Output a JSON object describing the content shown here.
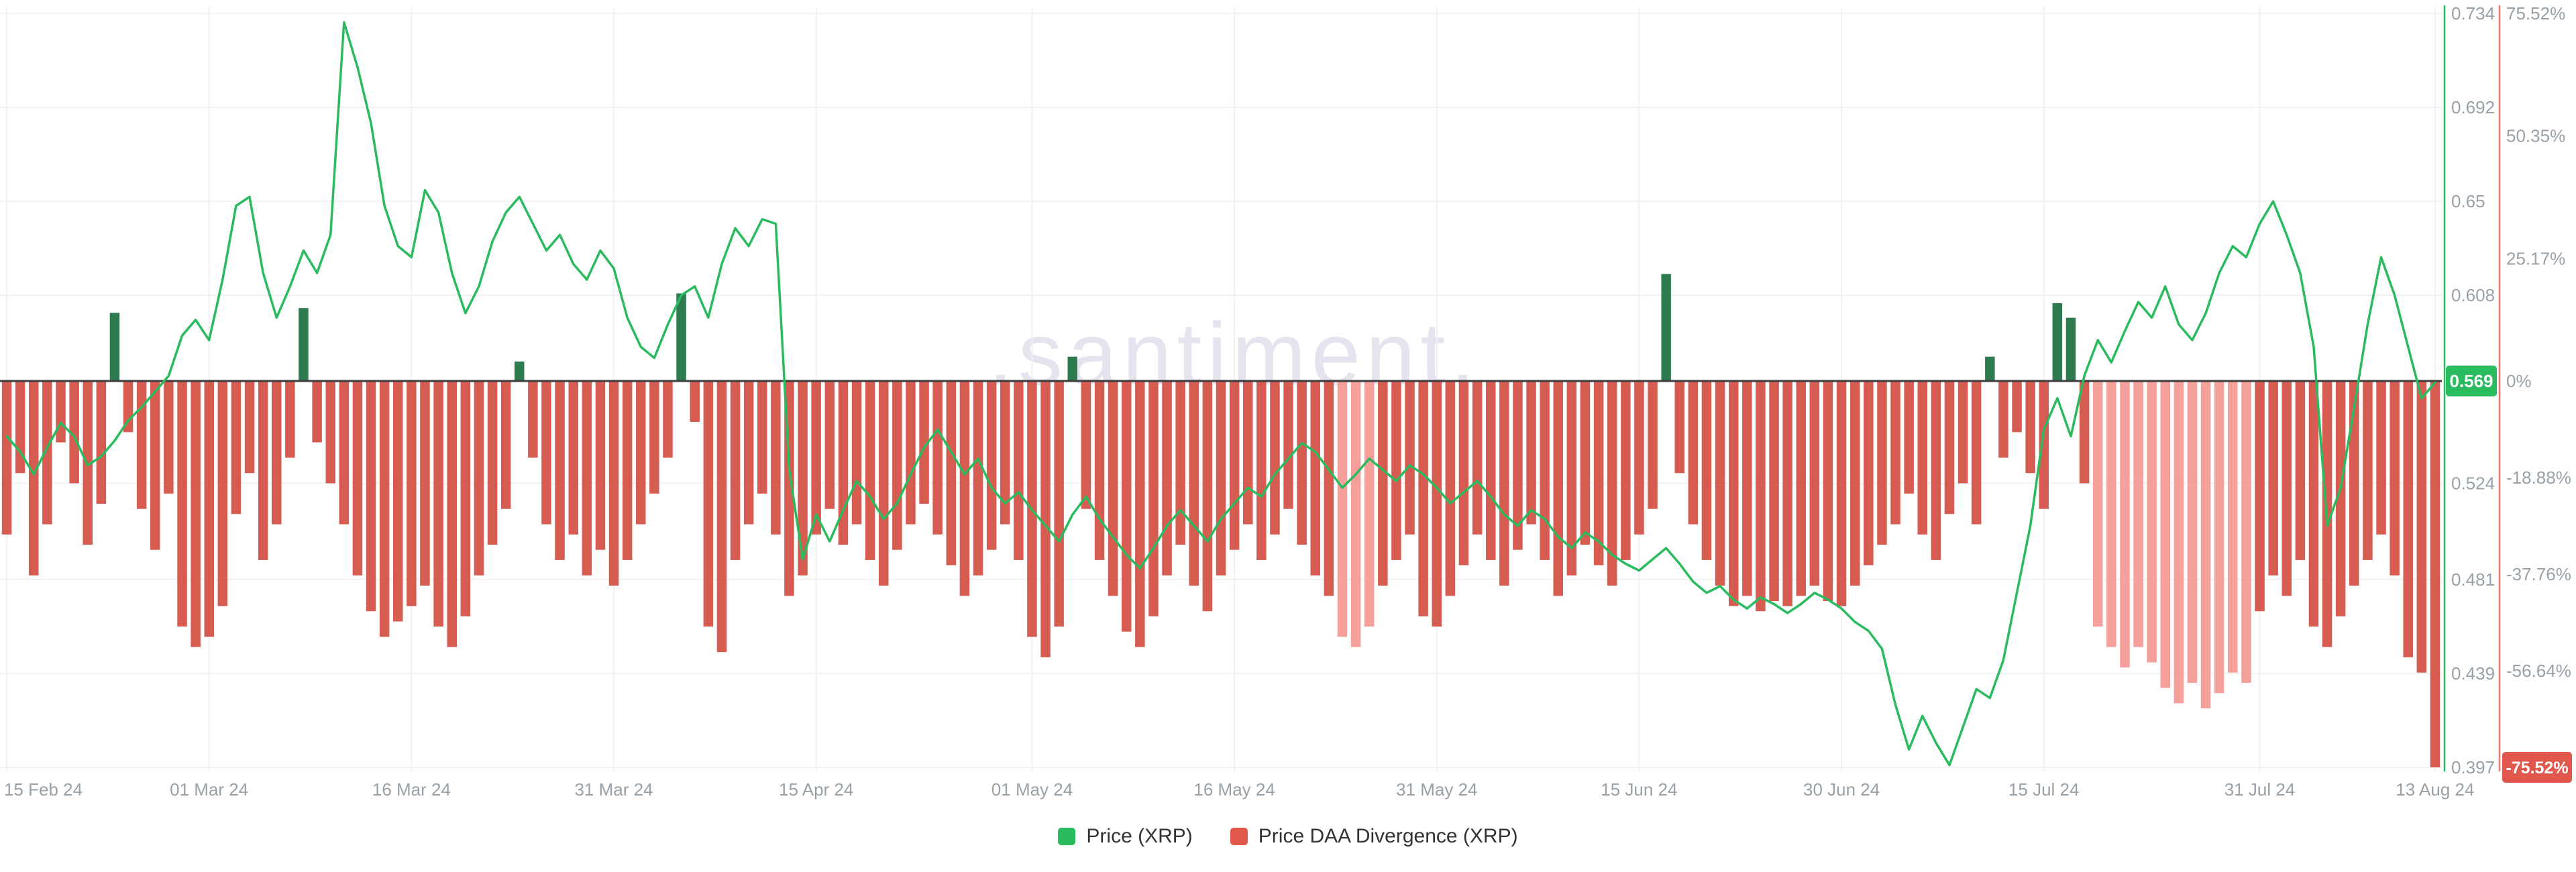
{
  "watermark": ".santiment.",
  "legend": [
    {
      "label": "Price (XRP)",
      "color": "#2abb5e"
    },
    {
      "label": "Price DAA Divergence (XRP)",
      "color": "#e2574c"
    }
  ],
  "chart_data": {
    "type": "mixed",
    "title": "",
    "x_axis": {
      "start": "15 Feb 24",
      "end": "13 Aug 24",
      "points": 181,
      "tick_labels": [
        "15 Feb 24",
        "01 Mar 24",
        "16 Mar 24",
        "31 Mar 24",
        "15 Apr 24",
        "01 May 24",
        "16 May 24",
        "31 May 24",
        "15 Jun 24",
        "30 Jun 24",
        "15 Jul 24",
        "31 Jul 24",
        "13 Aug 24"
      ],
      "tick_indices": [
        0,
        15,
        30,
        45,
        60,
        76,
        91,
        106,
        121,
        136,
        151,
        167,
        180
      ]
    },
    "price_axis": {
      "side": "right-inner",
      "color": "#2abb5e",
      "min": 0.397,
      "max": 0.734,
      "ticks": [
        0.734,
        0.692,
        0.65,
        0.608,
        0.524,
        0.481,
        0.439,
        0.397
      ],
      "current_badge": {
        "label": "0.569",
        "value": 0.569,
        "color": "#2abb5e"
      }
    },
    "percent_axis": {
      "side": "right-outer",
      "color": "#f2766b",
      "min": -75.52,
      "max": 75.52,
      "ticks": [
        {
          "label": "75.52%",
          "value": 75.52
        },
        {
          "label": "50.35%",
          "value": 50.35
        },
        {
          "label": "25.17%",
          "value": 25.17
        },
        {
          "label": "0%",
          "value": 0
        },
        {
          "label": "-18.88%",
          "value": -18.88
        },
        {
          "label": "-37.76%",
          "value": -37.76
        },
        {
          "label": "-56.64%",
          "value": -56.64
        }
      ],
      "bottom_badge": {
        "label": "-75.52%",
        "value": -75.52,
        "color": "#e2574c"
      }
    },
    "zero_line_color": "#3d3d3d",
    "grid_color": "#f1f1f4",
    "tick_text_color": "#99a1a8",
    "series": [
      {
        "name": "Price (XRP)",
        "type": "line",
        "axis": "price",
        "color": "#2abb5e",
        "values": [
          0.545,
          0.538,
          0.528,
          0.54,
          0.551,
          0.545,
          0.532,
          0.536,
          0.543,
          0.552,
          0.558,
          0.565,
          0.572,
          0.59,
          0.597,
          0.588,
          0.615,
          0.648,
          0.652,
          0.618,
          0.598,
          0.612,
          0.628,
          0.618,
          0.635,
          0.73,
          0.71,
          0.685,
          0.648,
          0.63,
          0.625,
          0.655,
          0.645,
          0.618,
          0.6,
          0.612,
          0.632,
          0.645,
          0.652,
          0.64,
          0.628,
          0.635,
          0.622,
          0.615,
          0.628,
          0.62,
          0.598,
          0.585,
          0.58,
          0.595,
          0.608,
          0.612,
          0.598,
          0.622,
          0.638,
          0.63,
          0.642,
          0.64,
          0.53,
          0.49,
          0.51,
          0.498,
          0.512,
          0.525,
          0.518,
          0.508,
          0.515,
          0.528,
          0.54,
          0.548,
          0.538,
          0.528,
          0.535,
          0.522,
          0.515,
          0.52,
          0.512,
          0.505,
          0.498,
          0.51,
          0.518,
          0.508,
          0.5,
          0.492,
          0.486,
          0.495,
          0.505,
          0.512,
          0.505,
          0.498,
          0.508,
          0.515,
          0.522,
          0.518,
          0.528,
          0.535,
          0.542,
          0.538,
          0.53,
          0.522,
          0.528,
          0.535,
          0.53,
          0.525,
          0.532,
          0.528,
          0.522,
          0.515,
          0.52,
          0.525,
          0.518,
          0.51,
          0.505,
          0.512,
          0.508,
          0.5,
          0.495,
          0.502,
          0.498,
          0.492,
          0.488,
          0.485,
          0.49,
          0.495,
          0.488,
          0.48,
          0.475,
          0.478,
          0.472,
          0.468,
          0.473,
          0.47,
          0.466,
          0.47,
          0.475,
          0.472,
          0.468,
          0.462,
          0.458,
          0.45,
          0.425,
          0.405,
          0.42,
          0.408,
          0.398,
          0.415,
          0.432,
          0.428,
          0.445,
          0.475,
          0.505,
          0.548,
          0.562,
          0.545,
          0.572,
          0.588,
          0.578,
          0.592,
          0.605,
          0.598,
          0.612,
          0.595,
          0.588,
          0.6,
          0.618,
          0.63,
          0.625,
          0.64,
          0.65,
          0.635,
          0.618,
          0.585,
          0.505,
          0.522,
          0.558,
          0.595,
          0.625,
          0.608,
          0.585,
          0.562,
          0.569
        ]
      },
      {
        "name": "Price DAA Divergence (XRP)",
        "type": "bar",
        "axis": "percent",
        "color_negative": "#d65c52",
        "color_negative_light": "#f5a09a",
        "color_positive": "#2e7b4f",
        "light_indices": [
          99,
          100,
          101,
          155,
          156,
          157,
          158,
          159,
          160,
          161,
          162,
          163,
          164,
          165,
          166
        ],
        "values": [
          -30,
          -18,
          -38,
          -28,
          -12,
          -20,
          -32,
          -24,
          14,
          -10,
          -25,
          -33,
          -22,
          -48,
          -52,
          -50,
          -44,
          -26,
          -18,
          -35,
          -28,
          -15,
          15,
          -12,
          -20,
          -28,
          -38,
          -45,
          -50,
          -47,
          -44,
          -40,
          -48,
          -52,
          -46,
          -38,
          -32,
          -25,
          4,
          -15,
          -28,
          -35,
          -30,
          -38,
          -33,
          -40,
          -35,
          -28,
          -22,
          -15,
          18,
          -8,
          -48,
          -53,
          -35,
          -28,
          -22,
          -30,
          -42,
          -38,
          -30,
          -25,
          -32,
          -28,
          -35,
          -40,
          -33,
          -28,
          -24,
          -30,
          -36,
          -42,
          -38,
          -33,
          -28,
          -35,
          -50,
          -54,
          -48,
          5,
          -25,
          -35,
          -42,
          -49,
          -52,
          -46,
          -38,
          -32,
          -40,
          -45,
          -38,
          -33,
          -28,
          -35,
          -30,
          -25,
          -32,
          -38,
          -42,
          -50,
          -52,
          -48,
          -40,
          -35,
          -30,
          -46,
          -48,
          -42,
          -36,
          -30,
          -35,
          -40,
          -33,
          -28,
          -35,
          -42,
          -38,
          -32,
          -36,
          -40,
          -35,
          -30,
          -25,
          22,
          -18,
          -28,
          -35,
          -40,
          -44,
          -42,
          -45,
          -43,
          -44,
          -42,
          -40,
          -43,
          -44,
          -40,
          -36,
          -32,
          -28,
          -22,
          -30,
          -35,
          -26,
          -20,
          -28,
          5,
          -15,
          -10,
          -18,
          -25,
          16,
          13,
          -20,
          -48,
          -52,
          -56,
          -52,
          -55,
          -60,
          -63,
          -59,
          -64,
          -61,
          -57,
          -59,
          -45,
          -38,
          -42,
          -35,
          -48,
          -52,
          -46,
          -40,
          -35,
          -30,
          -38,
          -54,
          -57,
          -75.52
        ]
      }
    ]
  }
}
